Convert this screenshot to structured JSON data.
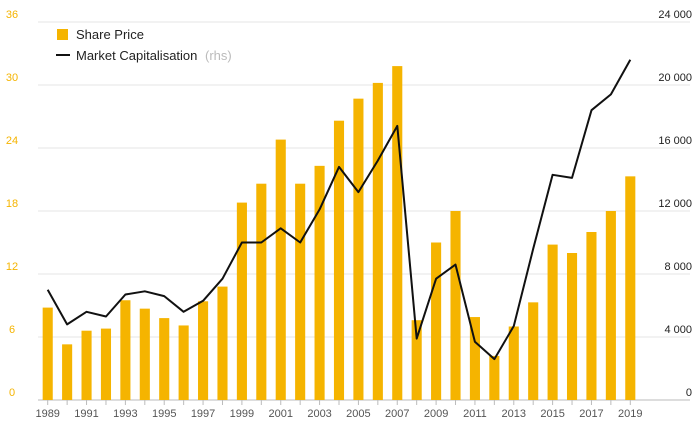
{
  "chart_data": {
    "type": "bar+line",
    "x": [
      1989,
      1990,
      1991,
      1992,
      1993,
      1994,
      1995,
      1996,
      1997,
      1998,
      1999,
      2000,
      2001,
      2002,
      2003,
      2004,
      2005,
      2006,
      2007,
      2008,
      2009,
      2010,
      2011,
      2012,
      2013,
      2014,
      2015,
      2016,
      2017,
      2018,
      2019
    ],
    "x_tick_labels": [
      "1989",
      "1991",
      "1993",
      "1995",
      "1997",
      "1999",
      "2001",
      "2003",
      "2005",
      "2007",
      "2009",
      "2011",
      "2013",
      "2015",
      "2017",
      "2019"
    ],
    "series": [
      {
        "name": "Share Price",
        "type": "bar",
        "axis": "left",
        "color": "#f5b400",
        "values": [
          8.8,
          5.3,
          6.6,
          6.8,
          9.5,
          8.7,
          7.8,
          7.1,
          9.4,
          10.8,
          18.8,
          20.6,
          24.8,
          20.6,
          22.3,
          26.6,
          28.7,
          30.2,
          31.8,
          7.6,
          15.0,
          18.0,
          7.9,
          4.2,
          7.0,
          9.3,
          14.8,
          14.0,
          16.0,
          18.0,
          21.3
        ]
      },
      {
        "name": "Market Capitalisation",
        "name_suffix": "(rhs)",
        "type": "line",
        "axis": "right",
        "color": "#111111",
        "values": [
          7000,
          4800,
          5600,
          5300,
          6700,
          6900,
          6600,
          5600,
          6300,
          7700,
          10000,
          10000,
          10900,
          10000,
          12100,
          14800,
          13200,
          15200,
          17400,
          3900,
          7700,
          8600,
          3700,
          2600,
          4700,
          9600,
          14300,
          14100,
          18400,
          19400,
          21600
        ]
      }
    ],
    "y_left": {
      "range": [
        0,
        36
      ],
      "ticks": [
        "0",
        "6",
        "12",
        "18",
        "24",
        "30",
        "36"
      ],
      "tick_color": "#f5b400"
    },
    "y_right": {
      "range": [
        0,
        24000
      ],
      "ticks": [
        "0",
        "4 000",
        "8 000",
        "12 000",
        "16 000",
        "20 000",
        "24 000"
      ],
      "tick_color": "#222222"
    },
    "legend": {
      "position": "top-left"
    },
    "grid": {
      "horizontal": true
    }
  }
}
